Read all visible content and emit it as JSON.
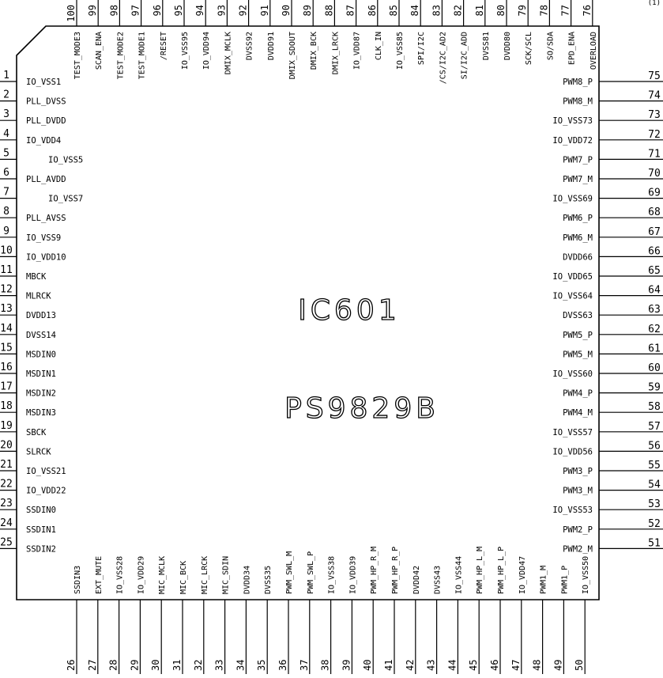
{
  "chip": {
    "ref": "IC601",
    "part": "PS9829B"
  },
  "corner_mark": "(1)",
  "pins": {
    "left": [
      {
        "num": "1",
        "name": "IO_VSS1"
      },
      {
        "num": "2",
        "name": "PLL_DVSS"
      },
      {
        "num": "3",
        "name": "PLL_DVDD"
      },
      {
        "num": "4",
        "name": "IO_VDD4"
      },
      {
        "num": "5",
        "name": "IO_VSS5"
      },
      {
        "num": "6",
        "name": "PLL_AVDD"
      },
      {
        "num": "7",
        "name": "IO_VSS7"
      },
      {
        "num": "8",
        "name": "PLL_AVSS"
      },
      {
        "num": "9",
        "name": "IO_VSS9"
      },
      {
        "num": "10",
        "name": "IO_VDD10"
      },
      {
        "num": "11",
        "name": "MBCK"
      },
      {
        "num": "12",
        "name": "MLRCK"
      },
      {
        "num": "13",
        "name": "DVDD13"
      },
      {
        "num": "14",
        "name": "DVSS14"
      },
      {
        "num": "15",
        "name": "MSDIN0"
      },
      {
        "num": "16",
        "name": "MSDIN1"
      },
      {
        "num": "17",
        "name": "MSDIN2"
      },
      {
        "num": "18",
        "name": "MSDIN3"
      },
      {
        "num": "19",
        "name": "SBCK"
      },
      {
        "num": "20",
        "name": "SLRCK"
      },
      {
        "num": "21",
        "name": "IO_VSS21"
      },
      {
        "num": "22",
        "name": "IO_VDD22"
      },
      {
        "num": "23",
        "name": "SSDIN0"
      },
      {
        "num": "24",
        "name": "SSDIN1"
      },
      {
        "num": "25",
        "name": "SSDIN2"
      }
    ],
    "bottom": [
      {
        "num": "26",
        "name": "SSDIN3"
      },
      {
        "num": "27",
        "name": "EXT_MUTE"
      },
      {
        "num": "28",
        "name": "IO_VSS28"
      },
      {
        "num": "29",
        "name": "IO_VDD29"
      },
      {
        "num": "30",
        "name": "MIC_MCLK"
      },
      {
        "num": "31",
        "name": "MIC_BCK"
      },
      {
        "num": "32",
        "name": "MIC_LRCK"
      },
      {
        "num": "33",
        "name": "MIC_SDIN"
      },
      {
        "num": "34",
        "name": "DVDD34"
      },
      {
        "num": "35",
        "name": "DVSS35"
      },
      {
        "num": "36",
        "name": "PWM_SWL_M"
      },
      {
        "num": "37",
        "name": "PWM_SWL_P"
      },
      {
        "num": "38",
        "name": "IO_VSS38"
      },
      {
        "num": "39",
        "name": "IO_VDD39"
      },
      {
        "num": "40",
        "name": "PWM_HP_R_M"
      },
      {
        "num": "41",
        "name": "PWM_HP_R_P"
      },
      {
        "num": "42",
        "name": "DVDD42"
      },
      {
        "num": "43",
        "name": "DVSS43"
      },
      {
        "num": "44",
        "name": "IO_VSS44"
      },
      {
        "num": "45",
        "name": "PWM_HP_L_M"
      },
      {
        "num": "46",
        "name": "PWM_HP_L_P"
      },
      {
        "num": "47",
        "name": "IO_VDD47"
      },
      {
        "num": "48",
        "name": "PWM1_M"
      },
      {
        "num": "49",
        "name": "PWM1_P"
      },
      {
        "num": "50",
        "name": "IO_VSS50"
      }
    ],
    "right": [
      {
        "num": "75",
        "name": "PWM8_P"
      },
      {
        "num": "74",
        "name": "PWM8_M"
      },
      {
        "num": "73",
        "name": "IO_VSS73"
      },
      {
        "num": "72",
        "name": "IO_VDD72"
      },
      {
        "num": "71",
        "name": "PWM7_P"
      },
      {
        "num": "70",
        "name": "PWM7_M"
      },
      {
        "num": "69",
        "name": "IO_VSS69"
      },
      {
        "num": "68",
        "name": "PWM6_P"
      },
      {
        "num": "67",
        "name": "PWM6_M"
      },
      {
        "num": "66",
        "name": "DVDD66"
      },
      {
        "num": "65",
        "name": "IO_VDD65"
      },
      {
        "num": "64",
        "name": "IO_VSS64"
      },
      {
        "num": "63",
        "name": "DVSS63"
      },
      {
        "num": "62",
        "name": "PWM5_P"
      },
      {
        "num": "61",
        "name": "PWM5_M"
      },
      {
        "num": "60",
        "name": "IO_VSS60"
      },
      {
        "num": "59",
        "name": "PWM4_P"
      },
      {
        "num": "58",
        "name": "PWM4_M"
      },
      {
        "num": "57",
        "name": "IO_VSS57"
      },
      {
        "num": "56",
        "name": "IO_VDD56"
      },
      {
        "num": "55",
        "name": "PWM3_P"
      },
      {
        "num": "54",
        "name": "PWM3_M"
      },
      {
        "num": "53",
        "name": "IO_VSS53"
      },
      {
        "num": "52",
        "name": "PWM2_P"
      },
      {
        "num": "51",
        "name": "PWM2_M"
      }
    ],
    "top": [
      {
        "num": "100",
        "name": "TEST_MODE3"
      },
      {
        "num": "99",
        "name": "SCAN_ENA"
      },
      {
        "num": "98",
        "name": "TEST_MODE2"
      },
      {
        "num": "97",
        "name": "TEST_MODE1"
      },
      {
        "num": "96",
        "name": "/RESET"
      },
      {
        "num": "95",
        "name": "IO_VSS95"
      },
      {
        "num": "94",
        "name": "IO_VDD94"
      },
      {
        "num": "93",
        "name": "DMIX_MCLK"
      },
      {
        "num": "92",
        "name": "DVSS92"
      },
      {
        "num": "91",
        "name": "DVDD91"
      },
      {
        "num": "90",
        "name": "DMIX_SDOUT"
      },
      {
        "num": "89",
        "name": "DMIX_BCK"
      },
      {
        "num": "88",
        "name": "DMIX_LRCK"
      },
      {
        "num": "87",
        "name": "IO_VDD87"
      },
      {
        "num": "86",
        "name": "CLK_IN"
      },
      {
        "num": "85",
        "name": "IO_VSS85"
      },
      {
        "num": "84",
        "name": "SPI/I2C"
      },
      {
        "num": "83",
        "name": "/CS/I2C_AD2"
      },
      {
        "num": "82",
        "name": "SI/I2C_ADD"
      },
      {
        "num": "81",
        "name": "DVSS81"
      },
      {
        "num": "80",
        "name": "DVDD80"
      },
      {
        "num": "79",
        "name": "SCK/SCL"
      },
      {
        "num": "78",
        "name": "SO/SDA"
      },
      {
        "num": "77",
        "name": "EPD_ENA"
      },
      {
        "num": "76",
        "name": "OVERLOAD"
      }
    ]
  }
}
